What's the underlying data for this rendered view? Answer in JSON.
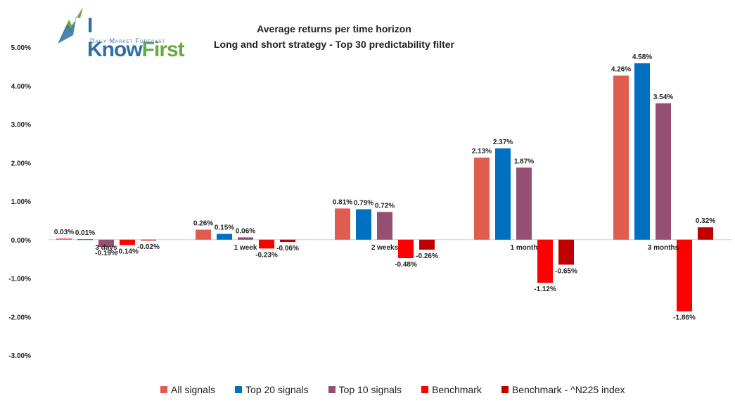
{
  "logo": {
    "name_main": "I Know",
    "name_accent": "First",
    "tagline": "Daily Market Forecast"
  },
  "chart_data": {
    "type": "bar",
    "title": "Average returns per time horizon",
    "subtitle": "Long and short strategy - Top 30 predictability filter",
    "categories": [
      "3 days",
      "1 week",
      "2 weeks",
      "1 month",
      "3 months"
    ],
    "yticks": [
      "5.00%",
      "4.00%",
      "3.00%",
      "2.00%",
      "1.00%",
      "0.00%",
      "-1.00%",
      "-2.00%",
      "-3.00%"
    ],
    "ylim": [
      -3,
      5
    ],
    "grid": false,
    "legend_position": "bottom",
    "series": [
      {
        "name": "All signals",
        "color": "#e05c4f",
        "values": [
          0.03,
          0.26,
          0.81,
          2.13,
          4.26
        ],
        "labels": [
          "0.03%",
          "0.26%",
          "0.81%",
          "2.13%",
          "4.26%"
        ]
      },
      {
        "name": "Top 20 signals",
        "color": "#0070c0",
        "values": [
          0.01,
          0.15,
          0.79,
          2.37,
          4.58
        ],
        "labels": [
          "0.01%",
          "0.15%",
          "0.79%",
          "2.37%",
          "4.58%"
        ]
      },
      {
        "name": "Top 10 signals",
        "color": "#954f72",
        "values": [
          -0.19,
          0.06,
          0.72,
          1.87,
          3.54
        ],
        "labels": [
          "-0.19%",
          "0.06%",
          "0.72%",
          "1.87%",
          "3.54%"
        ]
      },
      {
        "name": "Benchmark",
        "color": "#ff0000",
        "values": [
          -0.14,
          -0.23,
          -0.48,
          -1.12,
          -1.86
        ],
        "labels": [
          "-0.14%",
          "-0.23%",
          "-0.48%",
          "-1.12%",
          "-1.86%"
        ]
      },
      {
        "name": "Benchmark - ^N225 index",
        "color": "#c00000",
        "values": [
          -0.02,
          -0.06,
          -0.26,
          -0.65,
          0.32
        ],
        "labels": [
          "-0.02%",
          "-0.06%",
          "-0.26%",
          "-0.65%",
          "0.32%"
        ]
      }
    ]
  }
}
